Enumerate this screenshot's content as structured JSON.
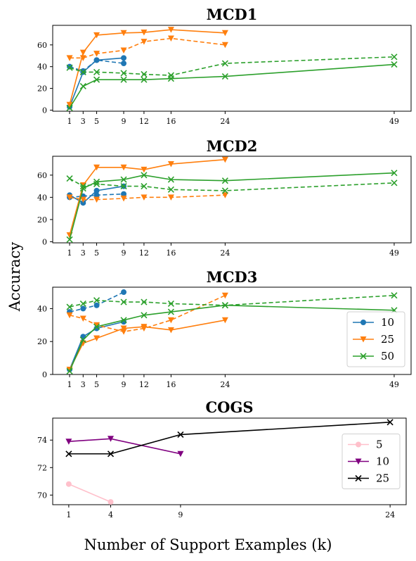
{
  "figure": {
    "ylabel": "Accuracy",
    "xlabel": "Number of Support Examples (k)"
  },
  "colors": {
    "10": "#1f77b4",
    "25": "#ff7f0e",
    "50": "#2ca02c",
    "cogs_5": "#ffc0cb",
    "cogs_10": "#800080",
    "cogs_25": "#000000"
  },
  "chart_data": [
    {
      "type": "line",
      "title": "MCD1",
      "x_ticks": [
        1,
        3,
        5,
        9,
        12,
        16,
        24,
        49
      ],
      "y_ticks": [
        0,
        20,
        40,
        60
      ],
      "xlim": [
        -1.5,
        51.5
      ],
      "ylim": [
        -1,
        78
      ],
      "grid": false,
      "legend": null,
      "series": [
        {
          "key": "10",
          "style": "solid",
          "marker": "circle",
          "x": [
            1,
            3,
            5,
            9
          ],
          "y": [
            3,
            35,
            46,
            48
          ]
        },
        {
          "key": "10",
          "style": "dashed",
          "marker": "circle",
          "x": [
            1,
            3,
            5,
            9
          ],
          "y": [
            40,
            36,
            46,
            43
          ]
        },
        {
          "key": "25",
          "style": "solid",
          "marker": "triangle",
          "x": [
            1,
            3,
            5,
            9,
            12,
            16,
            24
          ],
          "y": [
            5,
            53,
            69,
            71,
            71.5,
            74,
            71
          ]
        },
        {
          "key": "25",
          "style": "dashed",
          "marker": "triangle",
          "x": [
            1,
            3,
            5,
            9,
            12,
            16,
            24
          ],
          "y": [
            48,
            48,
            52,
            55,
            63,
            66,
            60
          ]
        },
        {
          "key": "50",
          "style": "solid",
          "marker": "x",
          "x": [
            1,
            3,
            5,
            9,
            12,
            16,
            24,
            49
          ],
          "y": [
            2,
            22,
            28,
            28,
            28,
            29,
            31,
            42
          ]
        },
        {
          "key": "50",
          "style": "dashed",
          "marker": "x",
          "x": [
            1,
            3,
            5,
            9,
            12,
            16,
            24,
            49
          ],
          "y": [
            39,
            35,
            35,
            34,
            33,
            32,
            43,
            49
          ]
        }
      ]
    },
    {
      "type": "line",
      "title": "MCD2",
      "x_ticks": [
        1,
        3,
        5,
        9,
        12,
        16,
        24,
        49
      ],
      "y_ticks": [
        0,
        20,
        40,
        60
      ],
      "xlim": [
        -1.5,
        51.5
      ],
      "ylim": [
        -1,
        77
      ],
      "grid": false,
      "legend": null,
      "series": [
        {
          "key": "10",
          "style": "solid",
          "marker": "circle",
          "x": [
            1,
            3,
            5,
            9
          ],
          "y": [
            42,
            35,
            46,
            50
          ]
        },
        {
          "key": "10",
          "style": "dashed",
          "marker": "circle",
          "x": [
            1,
            3,
            5,
            9
          ],
          "y": [
            40,
            41,
            42,
            43
          ]
        },
        {
          "key": "25",
          "style": "solid",
          "marker": "triangle",
          "x": [
            1,
            3,
            5,
            9,
            12,
            16,
            24
          ],
          "y": [
            6,
            51,
            67,
            67,
            65,
            70,
            74
          ]
        },
        {
          "key": "25",
          "style": "dashed",
          "marker": "triangle",
          "x": [
            1,
            3,
            5,
            9,
            12,
            16,
            24
          ],
          "y": [
            40,
            38,
            38,
            39,
            40,
            40,
            42
          ]
        },
        {
          "key": "50",
          "style": "solid",
          "marker": "x",
          "x": [
            1,
            3,
            5,
            9,
            12,
            16,
            24,
            49
          ],
          "y": [
            2,
            48,
            54,
            56,
            60,
            56,
            55,
            62
          ]
        },
        {
          "key": "50",
          "style": "dashed",
          "marker": "x",
          "x": [
            1,
            3,
            5,
            9,
            12,
            16,
            24,
            49
          ],
          "y": [
            57,
            50,
            52,
            50,
            50,
            47,
            46,
            53
          ]
        }
      ]
    },
    {
      "type": "line",
      "title": "MCD3",
      "x_ticks": [
        1,
        3,
        5,
        9,
        12,
        16,
        24,
        49
      ],
      "y_ticks": [
        0,
        20,
        40
      ],
      "xlim": [
        -1.5,
        51.5
      ],
      "ylim": [
        0,
        53
      ],
      "grid": false,
      "legend": {
        "placement": "center-right",
        "entries": [
          "10",
          "25",
          "50"
        ]
      },
      "series": [
        {
          "key": "10",
          "style": "solid",
          "marker": "circle",
          "x": [
            1,
            3,
            5,
            9
          ],
          "y": [
            3,
            23,
            28,
            32
          ]
        },
        {
          "key": "10",
          "style": "dashed",
          "marker": "circle",
          "x": [
            1,
            3,
            5,
            9
          ],
          "y": [
            38,
            40,
            42,
            50
          ]
        },
        {
          "key": "25",
          "style": "solid",
          "marker": "triangle",
          "x": [
            1,
            3,
            5,
            9,
            12,
            16,
            24
          ],
          "y": [
            3,
            19,
            22,
            28,
            29,
            27,
            33
          ]
        },
        {
          "key": "25",
          "style": "dashed",
          "marker": "triangle",
          "x": [
            1,
            3,
            5,
            9,
            12,
            16,
            24
          ],
          "y": [
            36,
            34,
            30,
            26,
            28,
            33,
            48
          ]
        },
        {
          "key": "50",
          "style": "solid",
          "marker": "x",
          "x": [
            1,
            3,
            5,
            9,
            12,
            16,
            24,
            49
          ],
          "y": [
            2,
            21,
            29,
            33,
            36,
            38,
            42,
            39
          ]
        },
        {
          "key": "50",
          "style": "dashed",
          "marker": "x",
          "x": [
            1,
            3,
            5,
            9,
            12,
            16,
            24,
            49
          ],
          "y": [
            41,
            43,
            45,
            44,
            44,
            43,
            42,
            48
          ]
        }
      ]
    },
    {
      "type": "line",
      "title": "COGS",
      "x_ticks": [
        1,
        4,
        9,
        24
      ],
      "y_ticks": [
        70,
        72,
        74
      ],
      "xlim": [
        -0.15,
        25.15
      ],
      "ylim": [
        69.3,
        75.6
      ],
      "grid": false,
      "legend": {
        "placement": "center-right",
        "entries": [
          "5",
          "10",
          "25"
        ]
      },
      "series": [
        {
          "key": "cogs_5",
          "label": "5",
          "style": "solid",
          "marker": "circle",
          "x": [
            1,
            4
          ],
          "y": [
            70.8,
            69.5
          ]
        },
        {
          "key": "cogs_10",
          "label": "10",
          "style": "solid",
          "marker": "triangle",
          "x": [
            1,
            4,
            9
          ],
          "y": [
            73.9,
            74.1,
            73.0
          ]
        },
        {
          "key": "cogs_25",
          "label": "25",
          "style": "solid",
          "marker": "x",
          "x": [
            1,
            4,
            9,
            24
          ],
          "y": [
            73.0,
            73.0,
            74.4,
            75.3
          ]
        }
      ]
    }
  ]
}
